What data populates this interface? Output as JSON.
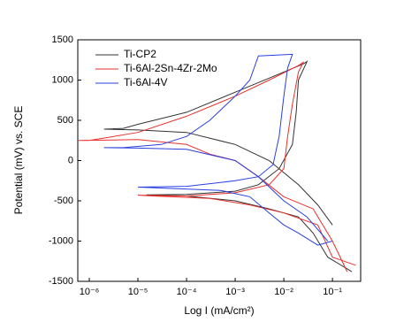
{
  "chart_data": {
    "type": "line",
    "x_label": "Log I (mA/cm²)",
    "y_label": "Potential (mV) vs. SCE",
    "xscale": "log",
    "xlim": [
      5.8e-07,
      0.38
    ],
    "ylim": [
      -1500,
      1500
    ],
    "xticks": [
      {
        "value": 1e-06,
        "label": "10⁻⁶"
      },
      {
        "value": 1e-05,
        "label": "10⁻⁵"
      },
      {
        "value": 0.0001,
        "label": "10⁻⁴"
      },
      {
        "value": 0.001,
        "label": "10⁻³"
      },
      {
        "value": 0.01,
        "label": "10⁻²"
      },
      {
        "value": 0.1,
        "label": "10⁻¹"
      }
    ],
    "yticks": [
      -1500,
      -1000,
      -500,
      0,
      500,
      1000,
      1500
    ],
    "legend": "upper left",
    "series": [
      {
        "name": "Ti-CP2",
        "color": "#333333",
        "x": [
          0.25,
          0.08,
          0.04,
          0.02,
          0.005,
          0.001,
          0.0001,
          1.5e-05,
          0.0001,
          0.001,
          0.003,
          0.008,
          0.015,
          0.018,
          0.02,
          0.03,
          0.025,
          0.01,
          0.001,
          0.0001,
          1e-05,
          5e-06,
          2e-06,
          1e-05,
          0.0001,
          0.001,
          0.005,
          0.02,
          0.05,
          0.1
        ],
        "values": [
          -1380,
          -1200,
          -900,
          -700,
          -600,
          -500,
          -440,
          -425,
          -420,
          -380,
          -300,
          -100,
          200,
          600,
          1000,
          1230,
          1200,
          1100,
          850,
          600,
          450,
          400,
          390,
          380,
          350,
          200,
          0,
          -300,
          -550,
          -800
        ]
      },
      {
        "name": "Ti-6Al-2Sn-4Zr-2Mo",
        "color": "#e8302c",
        "x": [
          0.3,
          0.1,
          0.05,
          0.01,
          0.002,
          0.0003,
          2e-05,
          1e-05,
          0.0001,
          0.001,
          0.005,
          0.01,
          0.012,
          0.015,
          0.02,
          0.025,
          0.02,
          0.005,
          0.001,
          0.0001,
          1e-05,
          1e-06,
          6e-07,
          1e-05,
          0.0001,
          0.0003,
          0.001,
          0.003,
          0.01,
          0.04,
          0.1,
          0.2
        ],
        "values": [
          -1300,
          -1200,
          -800,
          -650,
          -550,
          -470,
          -440,
          -430,
          -440,
          -400,
          -300,
          -100,
          300,
          700,
          1100,
          1220,
          1180,
          1000,
          800,
          550,
          350,
          250,
          250,
          260,
          200,
          80,
          0,
          -200,
          -450,
          -600,
          -1000,
          -1380
        ]
      },
      {
        "name": "Ti-6Al-4V",
        "color": "#2a3fe0",
        "x": [
          0.1,
          0.05,
          0.02,
          0.01,
          0.005,
          0.002,
          0.0005,
          1e-05,
          0.0001,
          0.001,
          0.003,
          0.006,
          0.008,
          0.01,
          0.012,
          0.015,
          0.003,
          0.002,
          0.001,
          0.0003,
          0.0001,
          3e-05,
          5e-06,
          2e-06,
          1e-05,
          0.0001,
          0.001,
          0.003,
          0.01,
          0.03,
          0.08
        ],
        "values": [
          -1000,
          -1050,
          -900,
          -800,
          -650,
          -450,
          -370,
          -330,
          -320,
          -250,
          -200,
          -50,
          300,
          800,
          1150,
          1320,
          1300,
          1000,
          800,
          500,
          300,
          200,
          160,
          160,
          155,
          140,
          0,
          -200,
          -500,
          -700,
          -1000
        ]
      }
    ]
  }
}
